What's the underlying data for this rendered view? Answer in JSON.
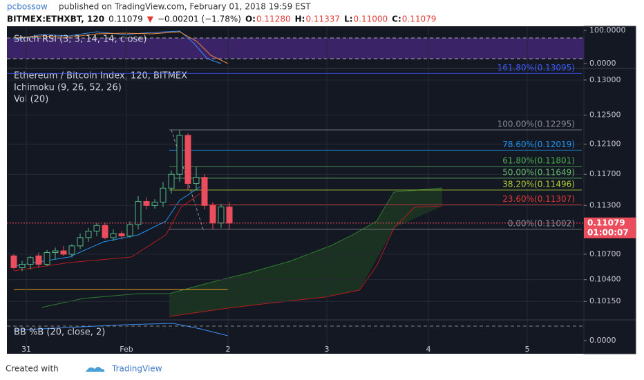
{
  "header": {
    "author": "pcbossow",
    "published": "published on TradingView.com, February 01, 2018 19:59 EST",
    "symbol": "BITMEX:ETHXBT, 120",
    "last": "0.11079",
    "arrow": "▼",
    "change": "−0.00201 (−1.78%)",
    "ohlc": [
      {
        "label": "O:",
        "value": "0.11280"
      },
      {
        "label": "H:",
        "value": "0.11337"
      },
      {
        "label": "L:",
        "value": "0.11000"
      },
      {
        "label": "C:",
        "value": "0.11079"
      }
    ]
  },
  "stoch": {
    "title": "Stoch RSI (3, 3, 14, 14, close)",
    "ticks": [
      {
        "value": 100,
        "label": "100.0000"
      },
      {
        "value": 0,
        "label": "0.0000"
      }
    ]
  },
  "bb": {
    "title": "BB %B (20, close, 2)",
    "ticks": [
      {
        "value": 0,
        "label": "0.0000"
      }
    ]
  },
  "chart_data": {
    "type": "candlestick",
    "title": "Ethereum / Bitcoin Index, 120, BITMEX",
    "indicators": [
      "Ichimoku (9, 26, 52, 26)",
      "Vol (20)"
    ],
    "log_scale": true,
    "grid": true,
    "up_color": "#53b987",
    "down_color": "#eb4d5c",
    "xticklabels": [
      "31",
      "Feb",
      "2",
      "3",
      "4",
      "5"
    ],
    "open": [
      0.1068,
      0.1054,
      0.1058,
      0.1068,
      0.1058,
      0.1072,
      0.1074,
      0.107,
      0.108,
      0.109,
      0.1098,
      0.1105,
      0.109,
      0.1095,
      0.1092,
      0.1106,
      0.1135,
      0.113,
      0.1134,
      0.1152,
      0.117,
      0.1222,
      0.1158,
      0.1166,
      0.113,
      0.1108,
      0.1128
    ],
    "high": [
      0.107,
      0.1062,
      0.1068,
      0.1072,
      0.1075,
      0.1078,
      0.108,
      0.1082,
      0.1095,
      0.1102,
      0.1108,
      0.1108,
      0.11,
      0.1098,
      0.111,
      0.1142,
      0.114,
      0.1138,
      0.116,
      0.1175,
      0.1229,
      0.1225,
      0.118,
      0.117,
      0.1134,
      0.1132,
      0.11337
    ],
    "low": [
      0.1052,
      0.105,
      0.1052,
      0.1054,
      0.1056,
      0.1064,
      0.1068,
      0.1066,
      0.1076,
      0.1085,
      0.1092,
      0.1088,
      0.1086,
      0.1088,
      0.109,
      0.11,
      0.1125,
      0.1126,
      0.1128,
      0.1145,
      0.116,
      0.115,
      0.115,
      0.1125,
      0.11,
      0.1102,
      0.11
    ],
    "close": [
      0.1054,
      0.1058,
      0.1066,
      0.1058,
      0.1072,
      0.1074,
      0.107,
      0.108,
      0.109,
      0.1098,
      0.1105,
      0.109,
      0.1095,
      0.1092,
      0.1106,
      0.1135,
      0.113,
      0.1134,
      0.1152,
      0.117,
      0.1222,
      0.1158,
      0.1166,
      0.113,
      0.1108,
      0.1128,
      0.11079
    ],
    "ylim": [
      0.0995,
      0.1316
    ],
    "yticks": [
      {
        "value": 0.13,
        "label": "0.13000"
      },
      {
        "value": 0.125,
        "label": "0.12500"
      },
      {
        "value": 0.121,
        "label": "0.12100"
      },
      {
        "value": 0.117,
        "label": "0.11700"
      },
      {
        "value": 0.113,
        "label": "0.11300"
      },
      {
        "value": 0.107,
        "label": "0.10700"
      },
      {
        "value": 0.104,
        "label": "0.10400"
      },
      {
        "value": 0.1015,
        "label": "0.10150"
      }
    ],
    "fib_levels": [
      {
        "value": 0.13095,
        "label": "161.80%(0.13095)",
        "color": "#3d5afe"
      },
      {
        "value": 0.12295,
        "label": "100.00%(0.12295)",
        "color": "#8a8d96"
      },
      {
        "value": 0.12019,
        "label": "78.60%(0.12019)",
        "color": "#2196f3"
      },
      {
        "value": 0.11801,
        "label": "61.80%(0.11801)",
        "color": "#4caf50"
      },
      {
        "value": 0.11649,
        "label": "50.00%(0.11649)",
        "color": "#66bb6a"
      },
      {
        "value": 0.11496,
        "label": "38.20%(0.11496)",
        "color": "#aed136"
      },
      {
        "value": 0.11307,
        "label": "23.60%(0.11307)",
        "color": "#e53935"
      },
      {
        "value": 0.11002,
        "label": "0.00%(0.11002)",
        "color": "#8a8d96"
      }
    ],
    "price_tag": {
      "value": 0.11079,
      "countdown": "01:00:07",
      "color": "#eb4d5c"
    }
  }
}
